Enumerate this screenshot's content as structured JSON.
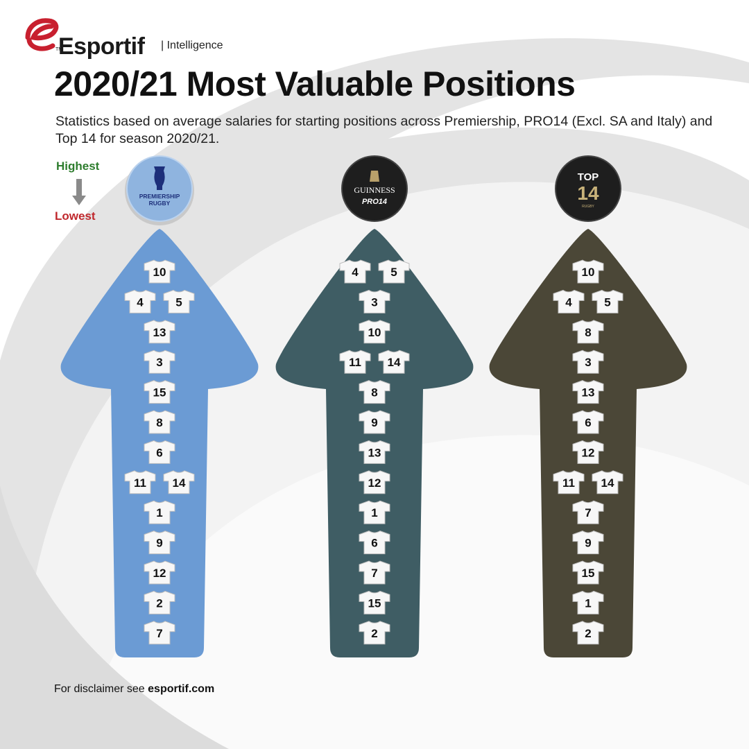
{
  "brand": {
    "name": "Esportif",
    "trademark": "TM",
    "tagline": "| Intelligence",
    "accent_color": "#c8202f"
  },
  "title": "2020/21 Most Valuable Positions",
  "subtitle": "Statistics based on average salaries for starting positions across Premiership, PRO14 (Excl. SA and Italy) and Top 14 for season 2020/21.",
  "legend": {
    "highest": "Highest",
    "lowest": "Lowest",
    "highest_color": "#2e7d2e",
    "lowest_color": "#c0282d",
    "arrow_icon": "down-arrow-icon"
  },
  "footer": {
    "prefix": "For disclaimer see ",
    "link": "esportif.com"
  },
  "chart_data": {
    "type": "table",
    "description_order": "top row = highest average salary, bottom row = lowest",
    "leagues": [
      {
        "badge_lines": [
          "PREMIERSHIP",
          "RUGBY"
        ],
        "badge_color": "#8fb4df",
        "arrow_color": "#6b9bd4",
        "rows": [
          [
            "10"
          ],
          [
            "4",
            "5"
          ],
          [
            "13"
          ],
          [
            "3"
          ],
          [
            "15"
          ],
          [
            "8"
          ],
          [
            "6"
          ],
          [
            "11",
            "14"
          ],
          [
            "1"
          ],
          [
            "9"
          ],
          [
            "12"
          ],
          [
            "2"
          ],
          [
            "7"
          ]
        ]
      },
      {
        "badge_lines": [
          "GUINNESS",
          "PRO14"
        ],
        "badge_color": "#1e1e1e",
        "arrow_color": "#3f5d64",
        "rows": [
          [
            "4",
            "5"
          ],
          [
            "3"
          ],
          [
            "10"
          ],
          [
            "11",
            "14"
          ],
          [
            "8"
          ],
          [
            "9"
          ],
          [
            "13"
          ],
          [
            "12"
          ],
          [
            "1"
          ],
          [
            "6"
          ],
          [
            "7"
          ],
          [
            "15"
          ],
          [
            "2"
          ]
        ]
      },
      {
        "badge_lines": [
          "TOP",
          "14",
          "RUGBY"
        ],
        "badge_color": "#1e1e1e",
        "arrow_color": "#4b4737",
        "rows": [
          [
            "10"
          ],
          [
            "4",
            "5"
          ],
          [
            "8"
          ],
          [
            "3"
          ],
          [
            "13"
          ],
          [
            "6"
          ],
          [
            "12"
          ],
          [
            "11",
            "14"
          ],
          [
            "7"
          ],
          [
            "9"
          ],
          [
            "15"
          ],
          [
            "1"
          ],
          [
            "2"
          ]
        ]
      }
    ]
  }
}
